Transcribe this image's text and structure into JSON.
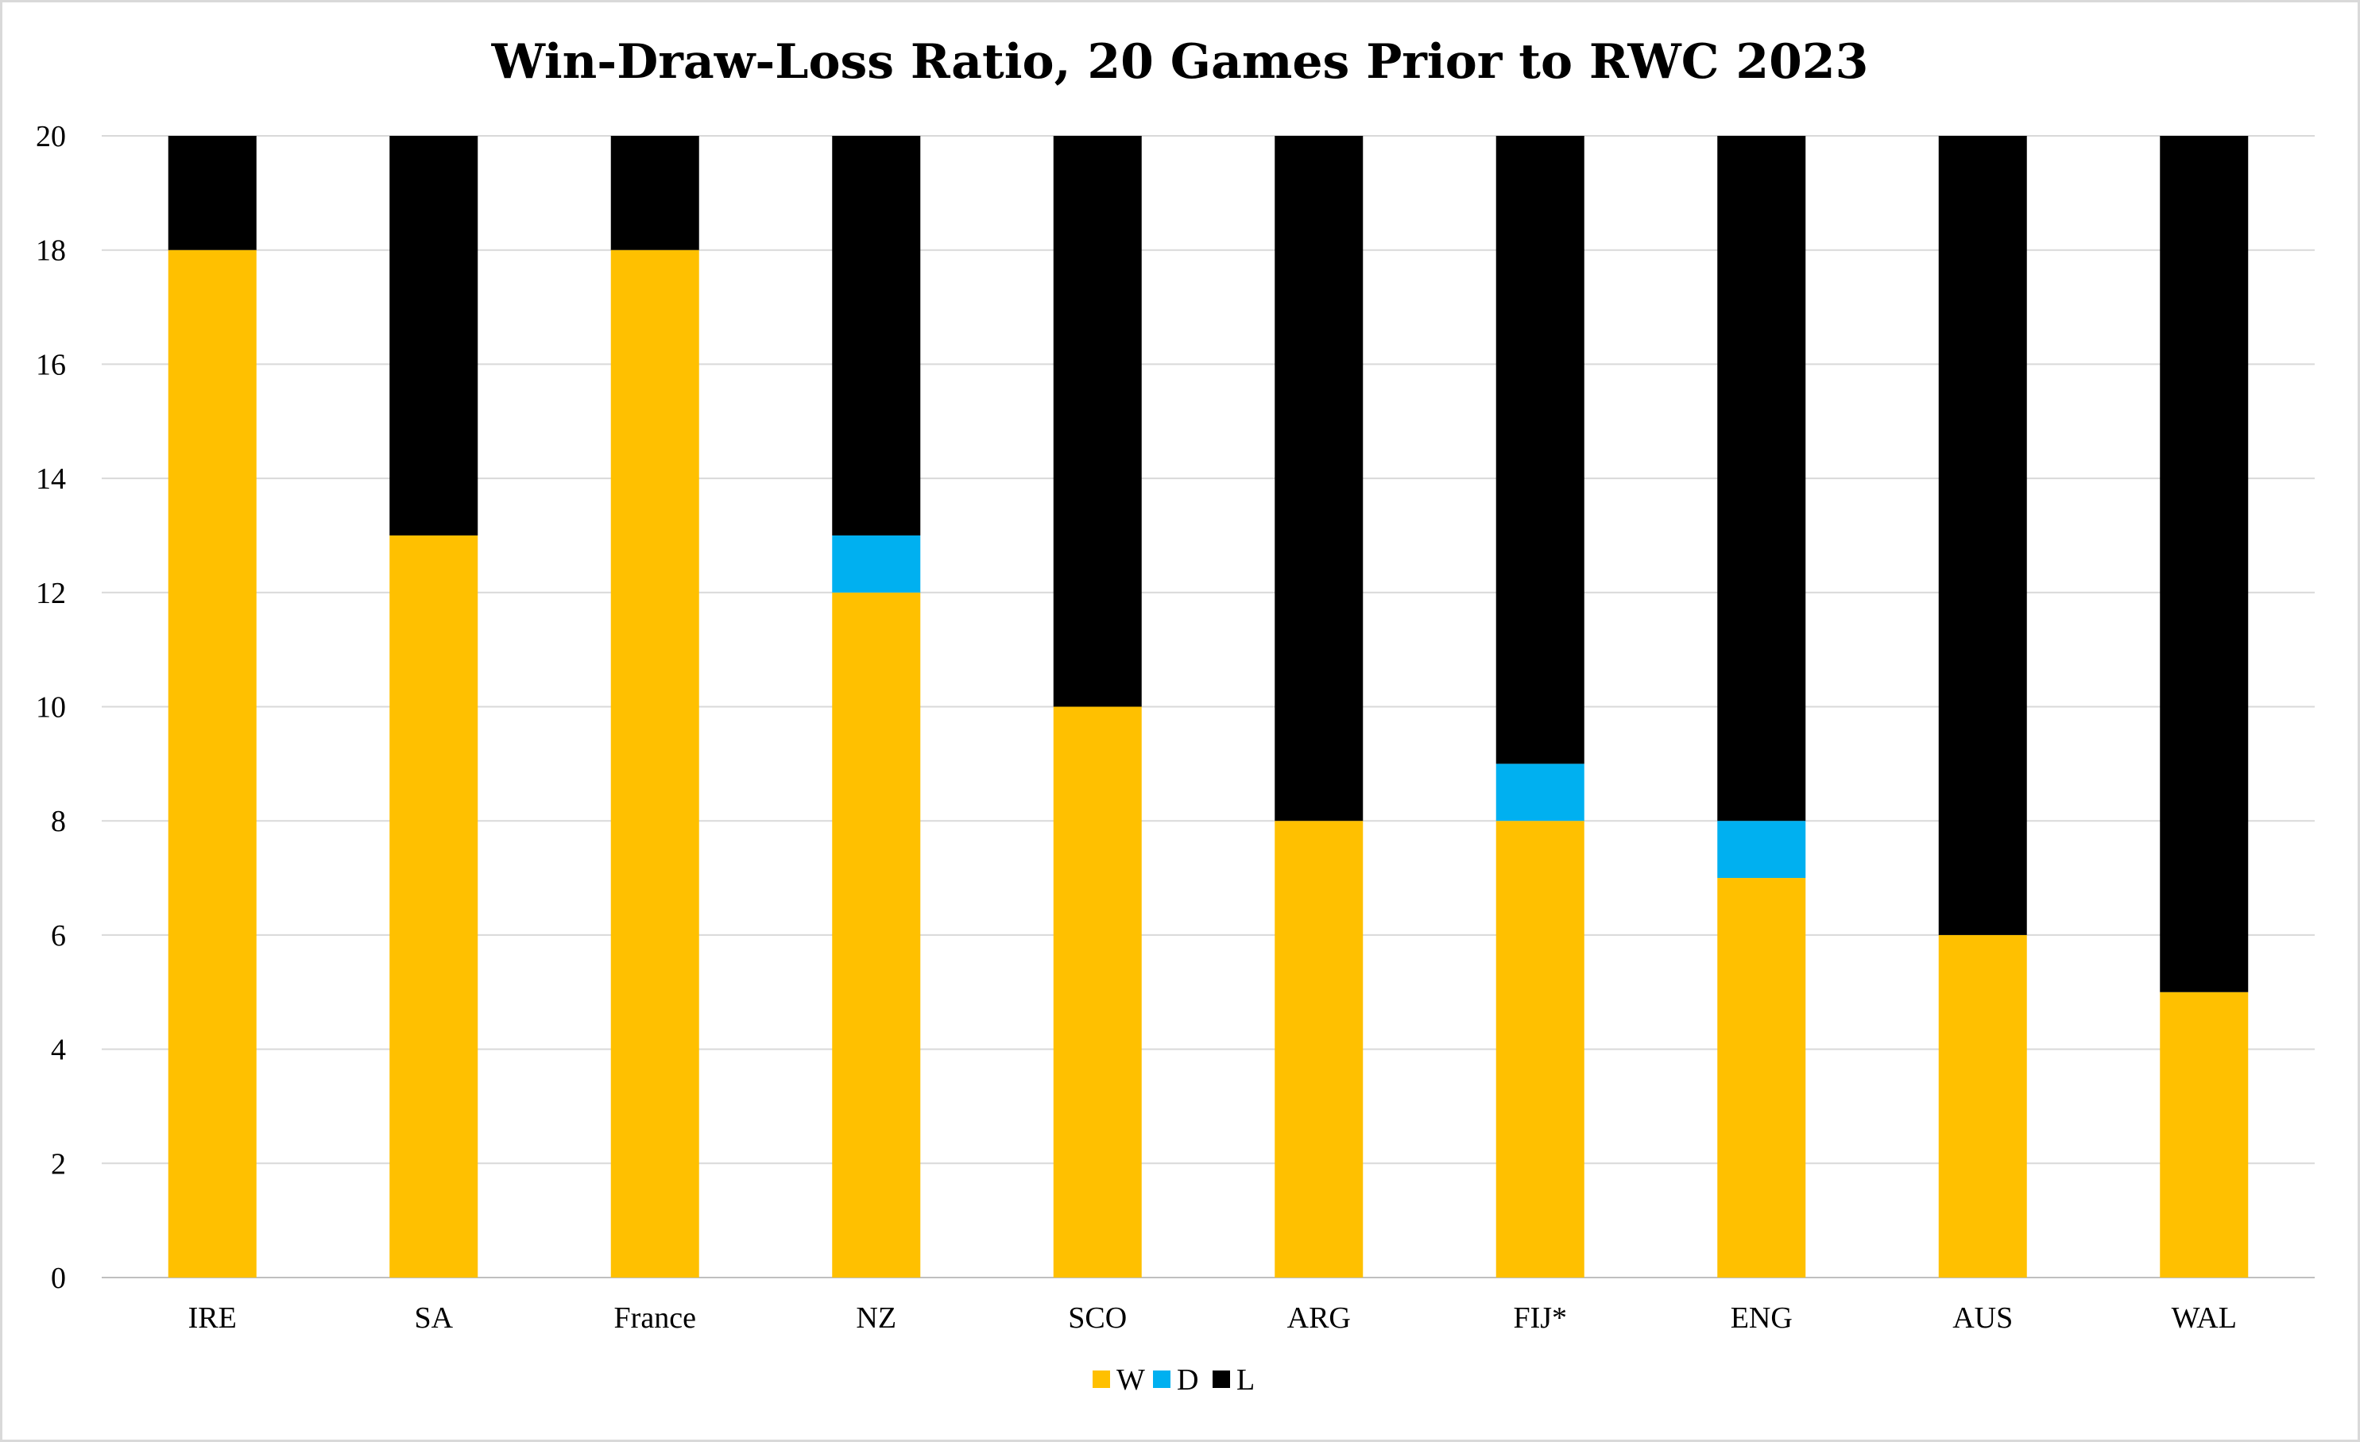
{
  "chart_data": {
    "type": "bar",
    "stacked": true,
    "title": "Win-Draw-Loss Ratio, 20 Games Prior to RWC 2023",
    "xlabel": "",
    "ylabel": "",
    "categories": [
      "IRE",
      "SA",
      "France",
      "NZ",
      "SCO",
      "ARG",
      "FIJ*",
      "ENG",
      "AUS",
      "WAL"
    ],
    "series": [
      {
        "name": "W",
        "color": "#FFC000",
        "values": [
          18,
          13,
          18,
          12,
          10,
          8,
          8,
          7,
          6,
          5
        ]
      },
      {
        "name": "D",
        "color": "#00B0F0",
        "values": [
          0,
          0,
          0,
          1,
          0,
          0,
          1,
          1,
          0,
          0
        ]
      },
      {
        "name": "L",
        "color": "#000000",
        "values": [
          2,
          7,
          2,
          7,
          10,
          12,
          11,
          12,
          14,
          15
        ]
      }
    ],
    "ylim": [
      0,
      20
    ],
    "yticks": [
      0,
      2,
      4,
      6,
      8,
      10,
      12,
      14,
      16,
      18,
      20
    ],
    "grid": true,
    "legend": "bottom"
  }
}
